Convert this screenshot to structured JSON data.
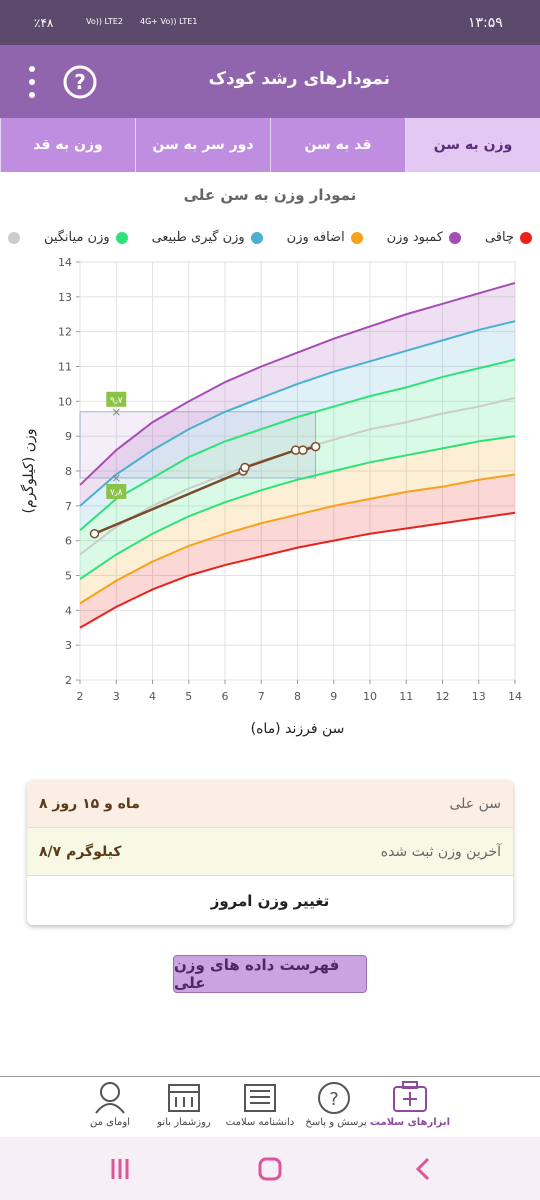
{
  "status_bar": {
    "battery": "٪۴۸",
    "sim1": "Vo)) LTE2",
    "sim2": "4G+ Vo)) LTE1",
    "time": "۱۳:۵۹"
  },
  "header": {
    "title": "نمودارهای رشد کودک"
  },
  "tabs": [
    "وزن به سن",
    "قد به سن",
    "دور سر به سن",
    "وزن به قد"
  ],
  "chart_data": {
    "type": "line",
    "title": "نمودار وزن به سن علی",
    "x_label": "سن فرزند (ماه)",
    "y_label": "وزن (کیلوگرم)",
    "legend": [
      {
        "label": "چاقی",
        "color": "#e8221c"
      },
      {
        "label": "کمبود وزن",
        "color": "#a64cb5"
      },
      {
        "label": "اضافه وزن",
        "color": "#f5a31a"
      },
      {
        "label": "وزن گیری طبیعی",
        "color": "#4bb0d0"
      },
      {
        "label": "وزن میانگین",
        "color": "#2ee27a"
      },
      {
        "label": null,
        "color": "#cccccc"
      }
    ],
    "x": [
      2,
      3,
      4,
      5,
      6,
      7,
      8,
      9,
      10,
      11,
      12,
      13,
      14
    ],
    "series": [
      {
        "color": "#e8221c",
        "values": [
          3.5,
          4.1,
          4.6,
          5.0,
          5.3,
          5.55,
          5.8,
          6.0,
          6.2,
          6.35,
          6.5,
          6.65,
          6.8
        ]
      },
      {
        "color": "#f5a31a",
        "values": [
          4.2,
          4.85,
          5.4,
          5.85,
          6.2,
          6.5,
          6.75,
          7.0,
          7.2,
          7.4,
          7.55,
          7.75,
          7.9
        ]
      },
      {
        "color": "#2ee27a",
        "values": [
          4.9,
          5.6,
          6.2,
          6.7,
          7.1,
          7.45,
          7.75,
          8.0,
          8.25,
          8.45,
          8.65,
          8.85,
          9.0
        ]
      },
      {
        "color": "#cccccc",
        "values": [
          5.6,
          6.4,
          7.0,
          7.5,
          7.9,
          8.3,
          8.6,
          8.9,
          9.2,
          9.4,
          9.65,
          9.85,
          10.1
        ]
      },
      {
        "color": "#2ee27a",
        "values": [
          6.3,
          7.2,
          7.8,
          8.4,
          8.85,
          9.2,
          9.55,
          9.85,
          10.15,
          10.4,
          10.7,
          10.95,
          11.2
        ]
      },
      {
        "color": "#4bb0d0",
        "values": [
          7.0,
          7.9,
          8.6,
          9.2,
          9.7,
          10.1,
          10.5,
          10.85,
          11.15,
          11.45,
          11.75,
          12.05,
          12.3
        ]
      },
      {
        "color": "#a64cb5",
        "values": [
          7.6,
          8.6,
          9.4,
          10.0,
          10.55,
          11.0,
          11.4,
          11.8,
          12.15,
          12.5,
          12.8,
          13.1,
          13.4
        ]
      }
    ],
    "points": {
      "color": "#7b4a2a",
      "x": [
        2.4,
        6.5,
        6.55,
        7.95,
        8.15,
        8.5
      ],
      "values": [
        6.2,
        8.0,
        8.1,
        8.6,
        8.6,
        8.7
      ]
    },
    "marker_x": 3,
    "range_markers": [
      {
        "value": 9.7,
        "label": "۹٫۷"
      },
      {
        "value": 7.8,
        "label": "۷٫۸"
      }
    ],
    "xlim": [
      2,
      14
    ],
    "ylim": [
      2,
      14
    ],
    "xticks": [
      2,
      3,
      4,
      5,
      6,
      7,
      8,
      9,
      10,
      11,
      12,
      13,
      14
    ],
    "yticks": [
      2,
      3,
      4,
      5,
      6,
      7,
      8,
      9,
      10,
      11,
      12,
      13,
      14
    ],
    "grid": true
  },
  "info": {
    "rows": [
      [
        "سن علی",
        "۸ ماه و ۱۵ روز"
      ],
      [
        "آخرین وزن ثبت شده",
        "۸/۷ کیلوگرم"
      ]
    ],
    "action": "تغییر وزن امروز"
  },
  "button": "فهرست داده های وزن علی",
  "bottom_nav": [
    "ابزارهای سلامت",
    "پرسش و پاسخ",
    "دانشنامه سلامت",
    "روزشمار بانو",
    "اومای من"
  ]
}
